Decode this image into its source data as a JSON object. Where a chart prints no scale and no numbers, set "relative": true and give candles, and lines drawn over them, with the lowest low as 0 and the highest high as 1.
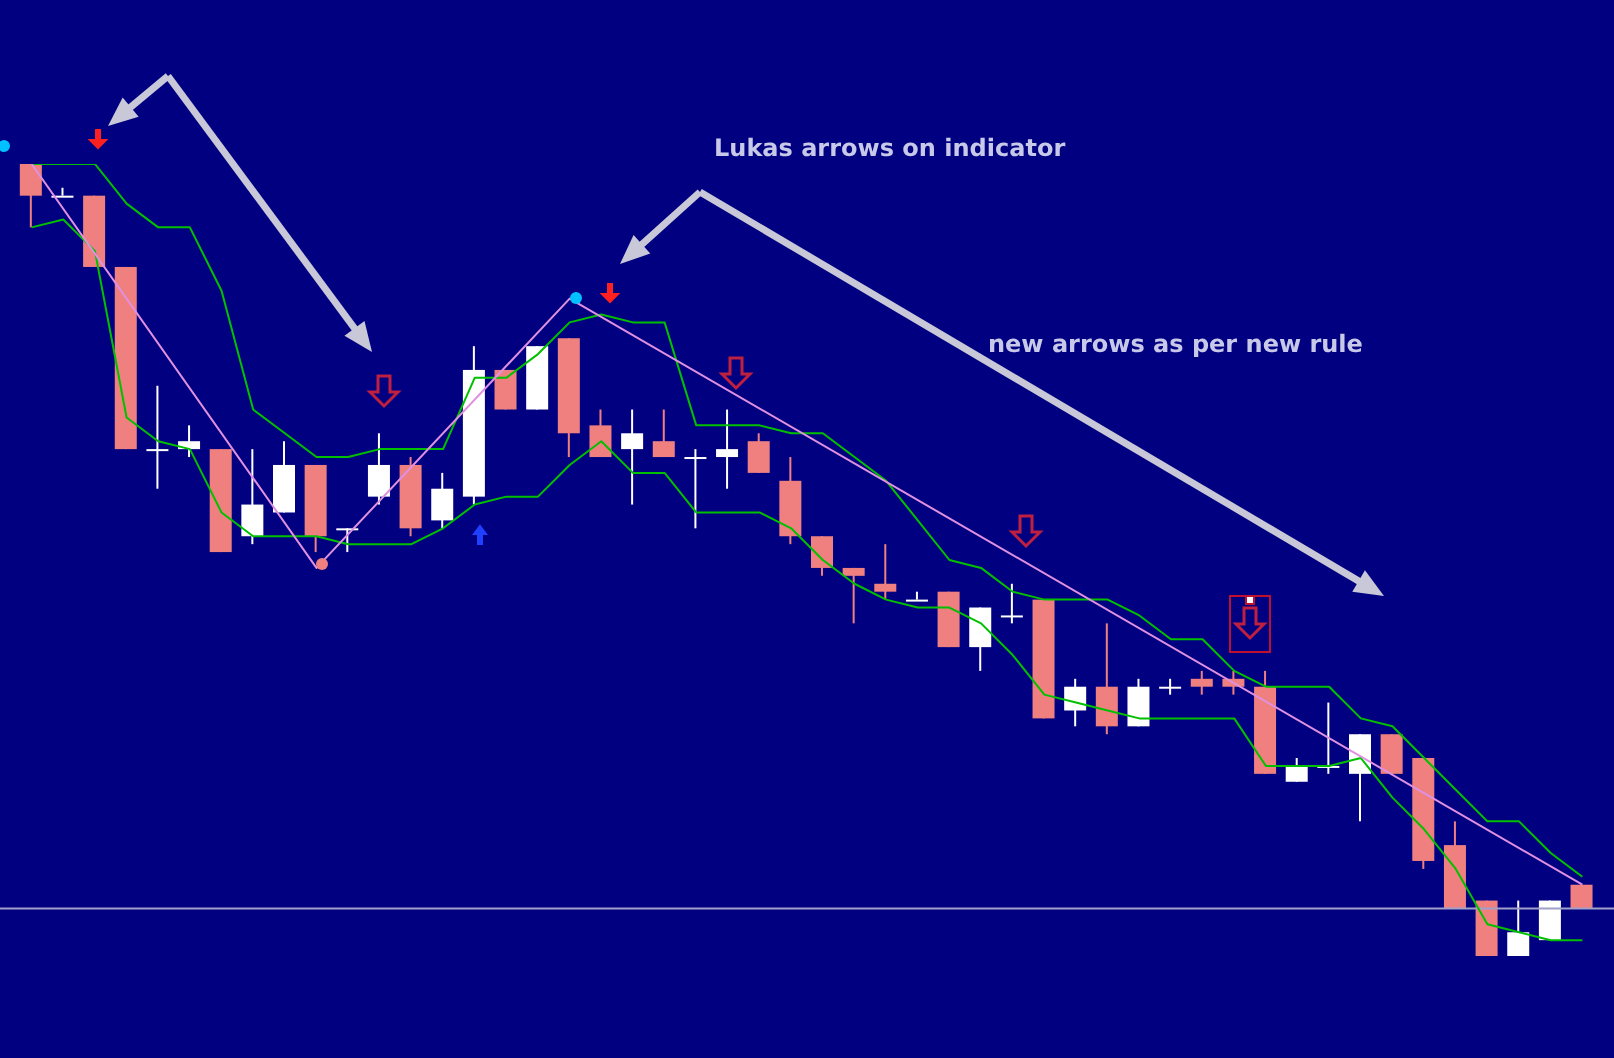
{
  "chart_data": {
    "type": "candlestick",
    "relative": true,
    "grid": false,
    "legend": false,
    "marker": "none",
    "categories": [
      null,
      null,
      null,
      null,
      null,
      null,
      null,
      null,
      null,
      null,
      null,
      null,
      null,
      null,
      null,
      null,
      null,
      null,
      null,
      null,
      null,
      null,
      null,
      null,
      null,
      null,
      null,
      null,
      null,
      null,
      null,
      null,
      null,
      null,
      null,
      null,
      null,
      null,
      null,
      null,
      null,
      null,
      null,
      null,
      null,
      null,
      null,
      null,
      null,
      null
    ],
    "ohlc": [
      [
        1.0,
        1.0,
        0.92,
        0.96
      ],
      [
        0.96,
        0.97,
        0.96,
        0.96
      ],
      [
        0.96,
        0.96,
        0.87,
        0.87
      ],
      [
        0.87,
        0.87,
        0.64,
        0.64
      ],
      [
        0.64,
        0.72,
        0.59,
        0.64
      ],
      [
        0.64,
        0.67,
        0.63,
        0.65
      ],
      [
        0.64,
        0.64,
        0.51,
        0.51
      ],
      [
        0.53,
        0.64,
        0.52,
        0.57
      ],
      [
        0.56,
        0.65,
        0.56,
        0.62
      ],
      [
        0.62,
        0.62,
        0.51,
        0.53
      ],
      [
        0.54,
        0.54,
        0.51,
        0.54
      ],
      [
        0.58,
        0.66,
        0.57,
        0.62
      ],
      [
        0.62,
        0.63,
        0.53,
        0.54
      ],
      [
        0.55,
        0.61,
        0.54,
        0.59
      ],
      [
        0.58,
        0.77,
        0.57,
        0.74
      ],
      [
        0.74,
        0.74,
        0.69,
        0.69
      ],
      [
        0.69,
        0.77,
        0.69,
        0.77
      ],
      [
        0.78,
        0.78,
        0.63,
        0.66
      ],
      [
        0.67,
        0.69,
        0.63,
        0.63
      ],
      [
        0.64,
        0.69,
        0.57,
        0.66
      ],
      [
        0.65,
        0.69,
        0.63,
        0.63
      ],
      [
        0.63,
        0.64,
        0.54,
        0.63
      ],
      [
        0.63,
        0.69,
        0.59,
        0.64
      ],
      [
        0.65,
        0.66,
        0.61,
        0.61
      ],
      [
        0.6,
        0.63,
        0.52,
        0.53
      ],
      [
        0.53,
        0.53,
        0.48,
        0.49
      ],
      [
        0.49,
        0.49,
        0.42,
        0.48
      ],
      [
        0.47,
        0.52,
        0.45,
        0.46
      ],
      [
        0.45,
        0.46,
        0.45,
        0.45
      ],
      [
        0.46,
        0.46,
        0.39,
        0.39
      ],
      [
        0.39,
        0.44,
        0.36,
        0.44
      ],
      [
        0.43,
        0.47,
        0.42,
        0.43
      ],
      [
        0.45,
        0.45,
        0.3,
        0.3
      ],
      [
        0.31,
        0.35,
        0.29,
        0.34
      ],
      [
        0.34,
        0.42,
        0.28,
        0.29
      ],
      [
        0.29,
        0.35,
        0.29,
        0.34
      ],
      [
        0.34,
        0.35,
        0.33,
        0.34
      ],
      [
        0.35,
        0.36,
        0.33,
        0.34
      ],
      [
        0.35,
        0.36,
        0.33,
        0.34
      ],
      [
        0.34,
        0.36,
        0.23,
        0.23
      ],
      [
        0.22,
        0.25,
        0.22,
        0.24
      ],
      [
        0.24,
        0.32,
        0.23,
        0.24
      ],
      [
        0.23,
        0.28,
        0.17,
        0.28
      ],
      [
        0.28,
        0.28,
        0.23,
        0.23
      ],
      [
        0.25,
        0.25,
        0.11,
        0.12
      ],
      [
        0.14,
        0.17,
        0.06,
        0.06
      ],
      [
        0.07,
        0.07,
        0,
        0
      ],
      [
        0,
        0.07,
        0,
        0.03
      ],
      [
        0.02,
        0.07,
        0.02,
        0.07
      ],
      [
        0.09,
        0.09,
        0.06,
        0.06
      ]
    ],
    "colors": [
      "#f08080",
      "#ffffff",
      "#f08080",
      "#f08080",
      "#ffffff",
      "#ffffff",
      "#f08080",
      "#ffffff",
      "#ffffff",
      "#f08080",
      "#ffffff",
      "#ffffff",
      "#f08080",
      "#ffffff",
      "#ffffff",
      "#f08080",
      "#ffffff",
      "#f08080",
      "#f08080",
      "#ffffff",
      "#f08080",
      "#ffffff",
      "#ffffff",
      "#f08080",
      "#f08080",
      "#f08080",
      "#f08080",
      "#f08080",
      "#ffffff",
      "#f08080",
      "#ffffff",
      "#ffffff",
      "#f08080",
      "#ffffff",
      "#f08080",
      "#ffffff",
      "#ffffff",
      "#f08080",
      "#f08080",
      "#f08080",
      "#ffffff",
      "#ffffff",
      "#ffffff",
      "#f08080",
      "#f08080",
      "#f08080",
      "#f08080",
      "#ffffff",
      "#ffffff",
      "#f08080"
    ],
    "series": [
      {
        "type": "line",
        "color": "#00c000",
        "values": [
          1.0,
          1.0,
          1.0,
          0.95,
          0.92,
          0.92,
          0.84,
          0.69,
          0.66,
          0.63,
          0.63,
          0.64,
          0.64,
          0.64,
          0.73,
          0.73,
          0.76,
          0.8,
          0.81,
          0.8,
          0.8,
          0.67,
          0.67,
          0.67,
          0.66,
          0.66,
          0.63,
          0.6,
          0.55,
          0.5,
          0.49,
          0.46,
          0.45,
          0.45,
          0.45,
          0.43,
          0.4,
          0.4,
          0.36,
          0.34,
          0.34,
          0.34,
          0.3,
          0.29,
          0.25,
          0.21,
          0.17,
          0.17,
          0.13,
          0.1
        ]
      },
      {
        "type": "line",
        "color": "#00c000",
        "values": [
          0.92,
          0.93,
          0.89,
          0.68,
          0.65,
          0.64,
          0.56,
          0.53,
          0.53,
          0.53,
          0.52,
          0.52,
          0.52,
          0.54,
          0.57,
          0.58,
          0.58,
          0.62,
          0.65,
          0.61,
          0.61,
          0.56,
          0.56,
          0.56,
          0.54,
          0.5,
          0.47,
          0.45,
          0.44,
          0.44,
          0.42,
          0.38,
          0.33,
          0.32,
          0.31,
          0.3,
          0.3,
          0.3,
          0.3,
          0.24,
          0.24,
          0.24,
          0.25,
          0.2,
          0.16,
          0.11,
          0.04,
          0.03,
          0.02,
          0.02
        ]
      },
      {
        "type": "line",
        "color": "#e090e0",
        "values": [
          1.0,
          null,
          null,
          null,
          null,
          null,
          null,
          null,
          null,
          0.49,
          null,
          null,
          null,
          null,
          null,
          null,
          null,
          0.83,
          null,
          null,
          null,
          null,
          null,
          null,
          null,
          null,
          null,
          null,
          null,
          null,
          null,
          null,
          null,
          null,
          null,
          null,
          null,
          null,
          null,
          null,
          null,
          null,
          null,
          null,
          null,
          null,
          null,
          null,
          null,
          0.09
        ]
      }
    ],
    "ref_lines": [
      {
        "axis": "y",
        "value": 0.06,
        "color": "#a0a0c8"
      }
    ],
    "annotations": [
      "Lukas arrows on indicator",
      "new arrows as per new rule"
    ]
  }
}
